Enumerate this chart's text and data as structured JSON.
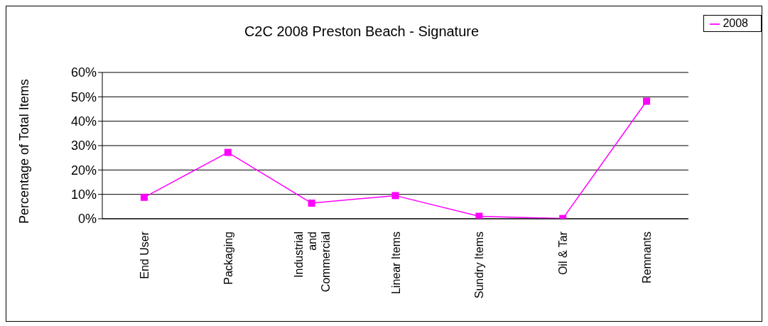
{
  "chart_data": {
    "type": "line",
    "title": "C2C 2008 Preston Beach - Signature",
    "ylabel": "Percentage of Total Items",
    "categories": [
      "End User",
      "Packaging",
      "Industrial and Commercial",
      "Linear Items",
      "Sundry Items",
      "Oil & Tar",
      "Remnants"
    ],
    "series": [
      {
        "name": "2008",
        "color": "#ff00ff",
        "values": [
          8.8,
          27.2,
          6.4,
          9.5,
          1.0,
          0.1,
          48.2
        ]
      }
    ],
    "ylim": [
      0,
      60
    ],
    "yticks": [
      {
        "value": 0,
        "label": "0%"
      },
      {
        "value": 10,
        "label": "10%"
      },
      {
        "value": 20,
        "label": "20%"
      },
      {
        "value": 30,
        "label": "30%"
      },
      {
        "value": 40,
        "label": "40%"
      },
      {
        "value": 50,
        "label": "50%"
      },
      {
        "value": 60,
        "label": "60%"
      }
    ],
    "grid": "y",
    "legend": "top right",
    "marker": "square",
    "line_style": "solid"
  }
}
